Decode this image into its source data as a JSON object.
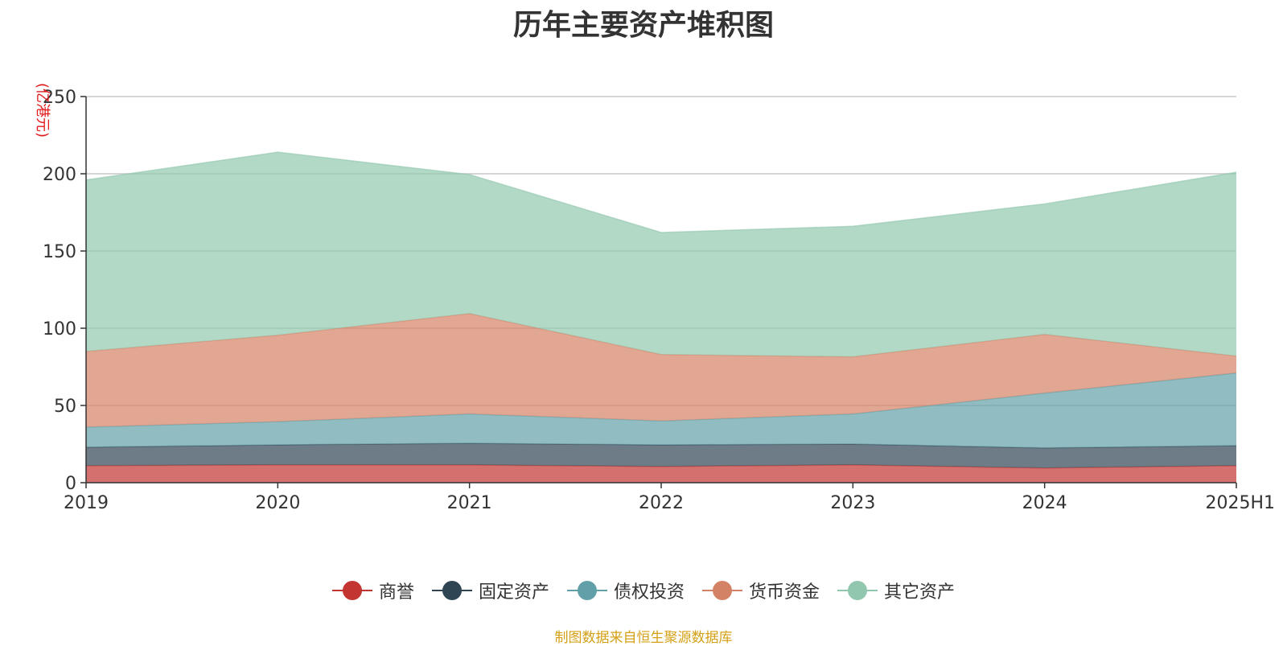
{
  "chart_data": {
    "type": "area",
    "stacked": true,
    "title": "历年主要资产堆积图",
    "unit_label": "(亿港元)",
    "x": [
      "2019",
      "2020",
      "2021",
      "2022",
      "2023",
      "2024",
      "2025H1"
    ],
    "ylim": [
      0,
      250
    ],
    "yticks": [
      0,
      50,
      100,
      150,
      200,
      250
    ],
    "grid": true,
    "legend_position": "bottom",
    "series": [
      {
        "name": "商誉",
        "color": "#c23531",
        "values": [
          11,
          11.5,
          11.5,
          10.5,
          11.5,
          9.5,
          11
        ]
      },
      {
        "name": "固定资产",
        "color": "#2f4554",
        "values": [
          12,
          13,
          14,
          14,
          13.5,
          13,
          13
        ]
      },
      {
        "name": "债权投资",
        "color": "#61a0a8",
        "values": [
          13,
          15,
          19,
          15.5,
          19.5,
          35.5,
          47
        ]
      },
      {
        "name": "货币资金",
        "color": "#d48265",
        "values": [
          49,
          56,
          65,
          43,
          37,
          38,
          11
        ]
      },
      {
        "name": "其它资产",
        "color": "#91c7ae",
        "values": [
          111,
          118.5,
          90,
          79,
          84.5,
          84.5,
          119
        ]
      }
    ]
  },
  "source_note": "制图数据来自恒生聚源数据库"
}
